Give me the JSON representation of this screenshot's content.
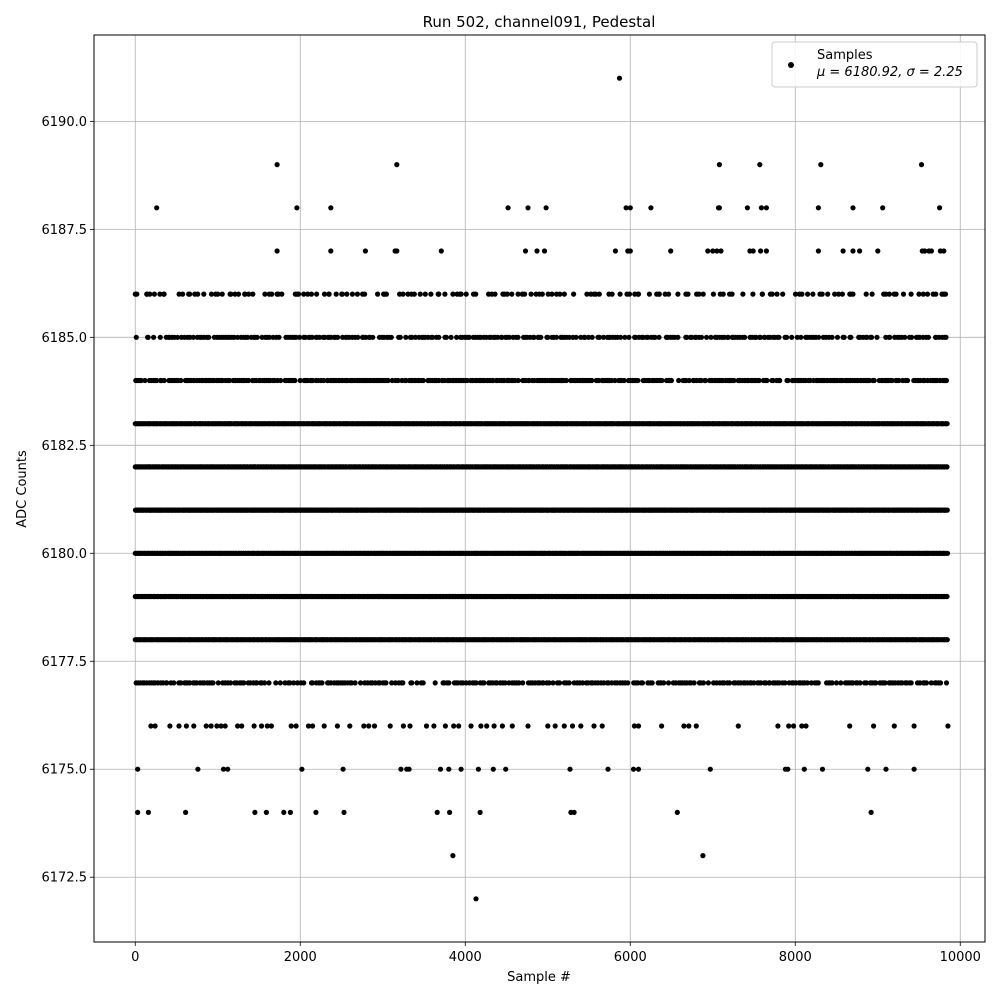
{
  "chart_data": {
    "type": "scatter",
    "title": "Run 502, channel091, Pedestal",
    "xlabel": "Sample #",
    "ylabel": "ADC Counts",
    "xlim": [
      -500,
      10300
    ],
    "ylim": [
      6171.0,
      6192.0
    ],
    "xticks": [
      0,
      2000,
      4000,
      6000,
      8000,
      10000
    ],
    "xtick_labels": [
      "0",
      "2000",
      "4000",
      "6000",
      "8000",
      "10000"
    ],
    "yticks": [
      6172.5,
      6175.0,
      6177.5,
      6180.0,
      6182.5,
      6185.0,
      6187.5,
      6190.0
    ],
    "ytick_labels": [
      "6172.5",
      "6175.0",
      "6177.5",
      "6180.0",
      "6182.5",
      "6185.0",
      "6187.5",
      "6190.0"
    ],
    "grid": true,
    "legend": {
      "position": "upper right",
      "label": "Samples",
      "stats": "μ = 6180.92, σ = 2.25"
    },
    "marker_color": "#000000",
    "series": [
      {
        "name": "Samples",
        "dense_levels": [
          {
            "y": 6177.0,
            "x_ranges": [
              [
                0,
                9850
              ]
            ],
            "step": 28
          },
          {
            "y": 6178.0,
            "x_ranges": [
              [
                0,
                9850
              ]
            ],
            "step": 14
          },
          {
            "y": 6179.0,
            "x_ranges": [
              [
                0,
                9850
              ]
            ],
            "step": 12
          },
          {
            "y": 6180.0,
            "x_ranges": [
              [
                0,
                9850
              ]
            ],
            "step": 12
          },
          {
            "y": 6181.0,
            "x_ranges": [
              [
                0,
                9850
              ]
            ],
            "step": 12
          },
          {
            "y": 6182.0,
            "x_ranges": [
              [
                0,
                9850
              ]
            ],
            "step": 12
          },
          {
            "y": 6183.0,
            "x_ranges": [
              [
                0,
                9850
              ]
            ],
            "step": 14
          },
          {
            "y": 6184.0,
            "x_ranges": [
              [
                0,
                9850
              ]
            ],
            "step": 20
          },
          {
            "y": 6185.0,
            "x_ranges": [
              [
                0,
                9850
              ]
            ],
            "step": 28
          },
          {
            "y": 6186.0,
            "x_ranges": [
              [
                0,
                9850
              ]
            ],
            "step": 60
          }
        ],
        "points": [
          [
            0,
            6186
          ],
          [
            140,
            6186
          ],
          [
            350,
            6186
          ],
          [
            660,
            6186
          ],
          [
            1150,
            6186
          ],
          [
            1330,
            6186
          ],
          [
            1720,
            6186
          ],
          [
            1980,
            6186
          ],
          [
            2350,
            6186
          ],
          [
            2510,
            6186
          ],
          [
            2780,
            6186
          ],
          [
            3010,
            6186
          ],
          [
            3350,
            6186
          ],
          [
            3680,
            6186
          ],
          [
            3950,
            6186
          ],
          [
            4510,
            6186
          ],
          [
            4900,
            6186
          ],
          [
            5050,
            6186
          ],
          [
            5200,
            6186
          ],
          [
            5560,
            6186
          ],
          [
            5780,
            6186
          ],
          [
            6100,
            6186
          ],
          [
            6350,
            6186
          ],
          [
            6700,
            6186
          ],
          [
            7600,
            6186
          ],
          [
            8300,
            6186
          ],
          [
            8700,
            6186
          ],
          [
            9100,
            6186
          ],
          [
            9500,
            6186
          ],
          [
            9800,
            6186
          ],
          [
            30,
            6174
          ],
          [
            160,
            6174
          ],
          [
            610,
            6174
          ],
          [
            1450,
            6174
          ],
          [
            1590,
            6174
          ],
          [
            1800,
            6174
          ],
          [
            1880,
            6174
          ],
          [
            2190,
            6174
          ],
          [
            2530,
            6174
          ],
          [
            3660,
            6174
          ],
          [
            3810,
            6174
          ],
          [
            4180,
            6174
          ],
          [
            5280,
            6174
          ],
          [
            5320,
            6174
          ],
          [
            6570,
            6174
          ],
          [
            8920,
            6174
          ],
          [
            30,
            6175
          ],
          [
            760,
            6175
          ],
          [
            1070,
            6175
          ],
          [
            1120,
            6175
          ],
          [
            2020,
            6175
          ],
          [
            2520,
            6175
          ],
          [
            3220,
            6175
          ],
          [
            3290,
            6175
          ],
          [
            3320,
            6175
          ],
          [
            3700,
            6175
          ],
          [
            3800,
            6175
          ],
          [
            3950,
            6175
          ],
          [
            4160,
            6175
          ],
          [
            4340,
            6175
          ],
          [
            4490,
            6175
          ],
          [
            5270,
            6175
          ],
          [
            5730,
            6175
          ],
          [
            6040,
            6175
          ],
          [
            6100,
            6175
          ],
          [
            6970,
            6175
          ],
          [
            7880,
            6175
          ],
          [
            7910,
            6175
          ],
          [
            8110,
            6175
          ],
          [
            8330,
            6175
          ],
          [
            8880,
            6175
          ],
          [
            9100,
            6175
          ],
          [
            9440,
            6175
          ],
          [
            3850,
            6173
          ],
          [
            6880,
            6173
          ],
          [
            4130,
            6172
          ],
          [
            5870,
            6191
          ],
          [
            1720,
            6189
          ],
          [
            3170,
            6189
          ],
          [
            7080,
            6189
          ],
          [
            7570,
            6189
          ],
          [
            8310,
            6189
          ],
          [
            9530,
            6189
          ],
          [
            260,
            6188
          ],
          [
            1960,
            6188
          ],
          [
            2370,
            6188
          ],
          [
            4520,
            6188
          ],
          [
            4760,
            6188
          ],
          [
            4980,
            6188
          ],
          [
            5950,
            6188
          ],
          [
            6000,
            6188
          ],
          [
            6250,
            6188
          ],
          [
            7070,
            6188
          ],
          [
            7080,
            6188
          ],
          [
            7420,
            6188
          ],
          [
            7590,
            6188
          ],
          [
            7650,
            6188
          ],
          [
            8280,
            6188
          ],
          [
            8700,
            6188
          ],
          [
            9060,
            6188
          ],
          [
            9750,
            6188
          ],
          [
            1720,
            6187
          ],
          [
            2370,
            6187
          ],
          [
            2790,
            6187
          ],
          [
            3150,
            6187
          ],
          [
            3170,
            6187
          ],
          [
            3710,
            6187
          ],
          [
            4730,
            6187
          ],
          [
            4870,
            6187
          ],
          [
            4960,
            6187
          ],
          [
            5820,
            6187
          ],
          [
            5970,
            6187
          ],
          [
            6000,
            6187
          ],
          [
            6490,
            6187
          ],
          [
            6940,
            6187
          ],
          [
            7000,
            6187
          ],
          [
            7050,
            6187
          ],
          [
            7100,
            6187
          ],
          [
            7450,
            6187
          ],
          [
            7490,
            6187
          ],
          [
            7580,
            6187
          ],
          [
            7650,
            6187
          ],
          [
            8280,
            6187
          ],
          [
            8580,
            6187
          ],
          [
            8700,
            6187
          ],
          [
            8780,
            6187
          ],
          [
            9000,
            6187
          ],
          [
            9540,
            6187
          ],
          [
            9570,
            6187
          ],
          [
            9620,
            6187
          ],
          [
            9650,
            6187
          ],
          [
            9760,
            6187
          ],
          [
            9800,
            6187
          ],
          [
            190,
            6176
          ],
          [
            240,
            6176
          ],
          [
            420,
            6176
          ],
          [
            530,
            6176
          ],
          [
            620,
            6176
          ],
          [
            710,
            6176
          ],
          [
            860,
            6176
          ],
          [
            920,
            6176
          ],
          [
            990,
            6176
          ],
          [
            1040,
            6176
          ],
          [
            1090,
            6176
          ],
          [
            1240,
            6176
          ],
          [
            1290,
            6176
          ],
          [
            1440,
            6176
          ],
          [
            1530,
            6176
          ],
          [
            1600,
            6176
          ],
          [
            1650,
            6176
          ],
          [
            1890,
            6176
          ],
          [
            1950,
            6176
          ],
          [
            2100,
            6176
          ],
          [
            2150,
            6176
          ],
          [
            2290,
            6176
          ],
          [
            2450,
            6176
          ],
          [
            2600,
            6176
          ],
          [
            2770,
            6176
          ],
          [
            2830,
            6176
          ],
          [
            2900,
            6176
          ],
          [
            3090,
            6176
          ],
          [
            3250,
            6176
          ],
          [
            3330,
            6176
          ],
          [
            3530,
            6176
          ],
          [
            3620,
            6176
          ],
          [
            3760,
            6176
          ],
          [
            3860,
            6176
          ],
          [
            3920,
            6176
          ],
          [
            4070,
            6176
          ],
          [
            4190,
            6176
          ],
          [
            4260,
            6176
          ],
          [
            4350,
            6176
          ],
          [
            4450,
            6176
          ],
          [
            4570,
            6176
          ],
          [
            4760,
            6176
          ],
          [
            5000,
            6176
          ],
          [
            5090,
            6176
          ],
          [
            5200,
            6176
          ],
          [
            5300,
            6176
          ],
          [
            5400,
            6176
          ],
          [
            5560,
            6176
          ],
          [
            5660,
            6176
          ],
          [
            6050,
            6176
          ],
          [
            6100,
            6176
          ],
          [
            6380,
            6176
          ],
          [
            6650,
            6176
          ],
          [
            6710,
            6176
          ],
          [
            6800,
            6176
          ],
          [
            7310,
            6176
          ],
          [
            7790,
            6176
          ],
          [
            7920,
            6176
          ],
          [
            7980,
            6176
          ],
          [
            8080,
            6176
          ],
          [
            8130,
            6176
          ],
          [
            8660,
            6176
          ],
          [
            8950,
            6176
          ],
          [
            9200,
            6176
          ],
          [
            9440,
            6176
          ],
          [
            9850,
            6176
          ]
        ]
      }
    ]
  }
}
